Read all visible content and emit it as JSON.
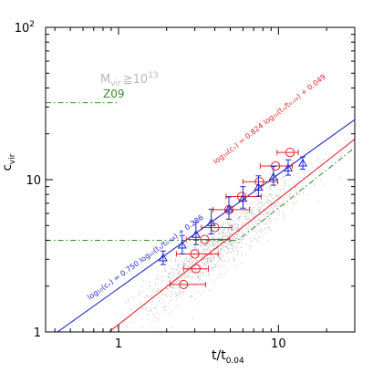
{
  "chart_data": {
    "type": "scatter",
    "xlabel_main": "t/t",
    "xlabel_sub": "0.04",
    "ylabel_main": "c",
    "ylabel_sub": "vir",
    "xscale": "log",
    "yscale": "log",
    "xlim": [
      0.35,
      30
    ],
    "ylim": [
      1,
      100
    ],
    "x_ticks": [
      {
        "value": 1,
        "label": "1"
      },
      {
        "value": 10,
        "label": "10"
      }
    ],
    "y_ticks": [
      {
        "value": 1,
        "label": "1"
      },
      {
        "value": 10,
        "label": "10"
      },
      {
        "value": 100,
        "label": "10",
        "exp": "2"
      }
    ],
    "mass_label": {
      "text": "M",
      "sub": "vir",
      "rest": "≧10",
      "sup": "13",
      "color": "#b8b8b8"
    },
    "reference_label": {
      "text": "Z09",
      "color": "#3a8a2a"
    },
    "series": [
      {
        "color": "#e8242c",
        "marker": "circle",
        "points": [
          {
            "x": 2.55,
            "y": 2.05,
            "xerr": [
              0.45,
              0.95
            ]
          },
          {
            "x": 3.05,
            "y": 2.6,
            "xerr": [
              0.5,
              0.6
            ]
          },
          {
            "x": 3.0,
            "y": 3.25,
            "xerr": [
              0.7,
              1.2
            ]
          },
          {
            "x": 3.45,
            "y": 4.05,
            "xerr": [
              0.8,
              1.5
            ]
          },
          {
            "x": 4.0,
            "y": 4.85,
            "xerr": [
              0.7,
              1.1
            ]
          },
          {
            "x": 4.9,
            "y": 6.35,
            "xerr": [
              1.0,
              1.7
            ]
          },
          {
            "x": 5.9,
            "y": 7.75,
            "xerr": [
              1.2,
              1.9
            ]
          },
          {
            "x": 7.6,
            "y": 9.7,
            "xerr": [
              1.6,
              2.3
            ]
          },
          {
            "x": 9.6,
            "y": 12.3,
            "xerr": [
              1.9,
              2.6
            ]
          },
          {
            "x": 11.8,
            "y": 15.1,
            "xerr": [
              2.0,
              1.5
            ]
          }
        ]
      },
      {
        "color": "#2228c8",
        "marker": "triangle",
        "points": [
          {
            "x": 1.9,
            "y": 3.05,
            "yerr": [
              0.28,
              0.35
            ]
          },
          {
            "x": 2.5,
            "y": 3.7,
            "yerr": [
              0.45,
              0.6
            ]
          },
          {
            "x": 3.05,
            "y": 4.35,
            "yerr": [
              0.6,
              0.9
            ]
          },
          {
            "x": 3.8,
            "y": 5.2,
            "yerr": [
              0.8,
              1.2
            ]
          },
          {
            "x": 4.9,
            "y": 6.4,
            "yerr": [
              0.9,
              1.3
            ]
          },
          {
            "x": 6.0,
            "y": 7.5,
            "yerr": [
              1.0,
              1.5
            ]
          },
          {
            "x": 7.5,
            "y": 8.9,
            "yerr": [
              1.1,
              1.7
            ]
          },
          {
            "x": 9.3,
            "y": 10.4,
            "yerr": [
              1.2,
              1.8
            ]
          },
          {
            "x": 11.5,
            "y": 11.9,
            "yerr": [
              1.2,
              1.6
            ]
          },
          {
            "x": 14.2,
            "y": 12.8,
            "yerr": [
              1.1,
              1.3
            ]
          }
        ]
      }
    ],
    "fits": [
      {
        "label": "log₁₀(cᵥ) = 0.824 log₁₀(tₓ/t₀.₀₄) + 0.049",
        "color": "#e8242c",
        "slope": 0.824,
        "intercept": 0.049
      },
      {
        "label": "log₁₀(cᵥ) = 0.750 log₁₀(tₓ/t₀.₀₄) + 0.286",
        "color": "#2228c8",
        "slope": 0.75,
        "intercept": 0.286
      }
    ],
    "z09_curve": {
      "color": "#3a8a2a",
      "floor_low": 4.0,
      "floor_high": 32.0,
      "break": 3.12,
      "slope": 0.83,
      "intercept": 0.0
    },
    "scatter_color": "#9a9a9a"
  }
}
